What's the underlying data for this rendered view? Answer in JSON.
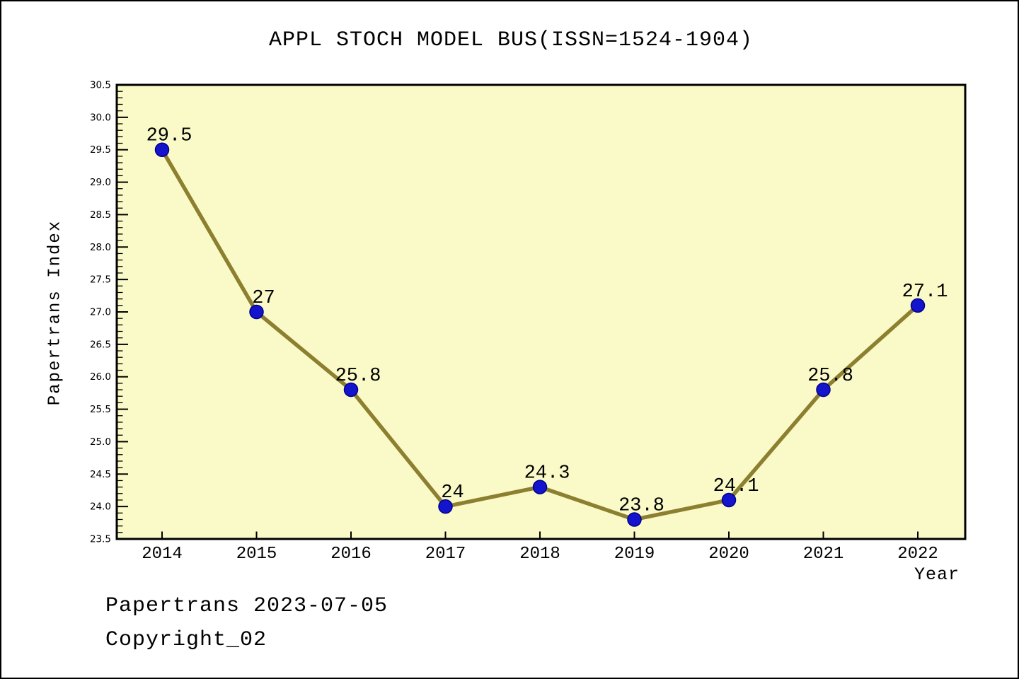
{
  "title": "APPL STOCH MODEL BUS(ISSN=1524-1904)",
  "footer": {
    "line1": "Papertrans 2023-07-05",
    "line2": "Copyright_02"
  },
  "chart_data": {
    "type": "line",
    "title": "APPL STOCH MODEL BUS(ISSN=1524-1904)",
    "xlabel": "Year",
    "ylabel": "Papertrans Index",
    "categories": [
      "2014",
      "2015",
      "2016",
      "2017",
      "2018",
      "2019",
      "2020",
      "2021",
      "2022"
    ],
    "values": [
      29.5,
      27,
      25.8,
      24,
      24.3,
      23.8,
      24.1,
      25.8,
      27.1
    ],
    "point_labels": [
      "29.5",
      "27",
      "25.8",
      "24",
      "24.3",
      "23.8",
      "24.1",
      "25.8",
      "27.1"
    ],
    "ylim": [
      23.5,
      30.5
    ],
    "ytick_step": 0.5,
    "yminor_step": 0.1,
    "grid": false,
    "legend": "none",
    "colors": {
      "line": "#8C8030",
      "marker_fill": "#1414CC",
      "marker_edge": "#00008B",
      "plot_background": "#FAFAC8",
      "axis": "#000000",
      "text": "#000000"
    }
  }
}
